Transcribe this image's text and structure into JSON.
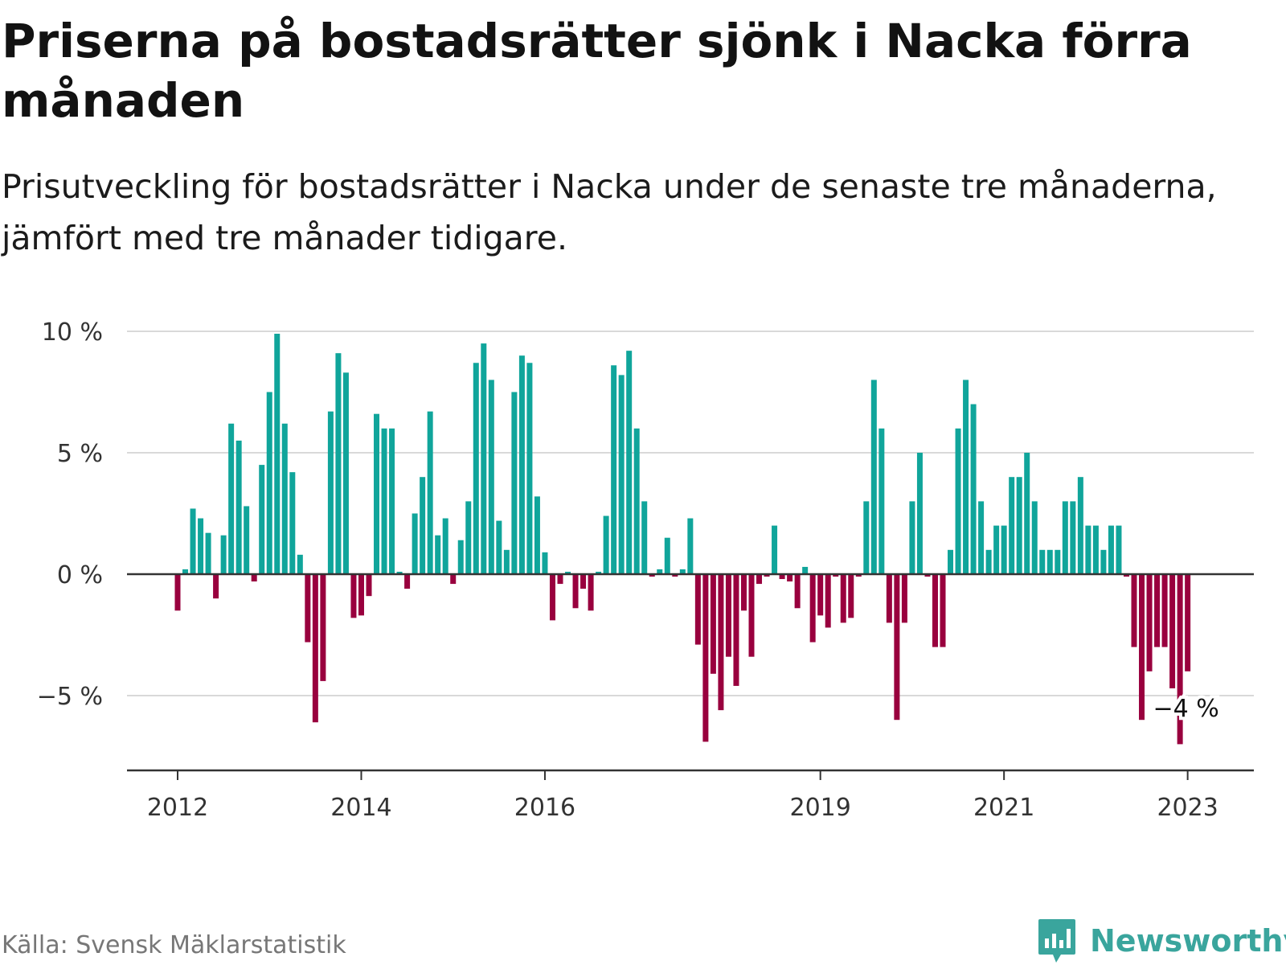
{
  "title": "Priserna på bostadsrätter sjönk i Nacka förra månaden",
  "subtitle": "Prisutveckling för bostadsrätter i Nacka under de senaste tre månaderna, jämfört med tre månader tidigare.",
  "source": "Källa: Svensk Mäklarstatistik",
  "brand": {
    "name": "Newsworthy",
    "icon": "newsworthy-logo-icon",
    "color": "#3aa59d"
  },
  "colors": {
    "positive": "#10a59b",
    "negative": "#99003e",
    "grid": "#d9d9d9",
    "axis": "#333333"
  },
  "chart_data": {
    "type": "bar",
    "title": "Priserna på bostadsrätter sjönk i Nacka förra månaden",
    "ylim": [
      -8,
      10.5
    ],
    "yticks": [
      10,
      5,
      0,
      -5
    ],
    "ytick_labels": [
      "10 %",
      "5 %",
      "0 %",
      "−5 %"
    ],
    "xtick_labels": [
      "2012",
      "2014",
      "2016",
      "2019",
      "2021",
      "2023"
    ],
    "annotation": "−4 %",
    "grid": true,
    "values": [
      -1.5,
      0.2,
      2.7,
      2.3,
      1.7,
      -1.0,
      1.6,
      6.2,
      5.5,
      2.8,
      -0.3,
      4.5,
      7.5,
      9.9,
      6.2,
      4.2,
      0.8,
      -2.8,
      -6.1,
      -4.4,
      6.7,
      9.1,
      8.3,
      -1.8,
      -1.7,
      -0.9,
      6.6,
      6.0,
      6.0,
      0.1,
      -0.6,
      2.5,
      4.0,
      6.7,
      1.6,
      2.3,
      -0.4,
      1.4,
      3.0,
      8.7,
      9.5,
      8.0,
      2.2,
      1.0,
      7.5,
      9.0,
      8.7,
      3.2,
      0.9,
      -1.9,
      -0.4,
      0.1,
      -1.4,
      -0.6,
      -1.5,
      0.1,
      2.4,
      8.6,
      8.2,
      9.2,
      6.0,
      3.0,
      -0.1,
      0.2,
      1.5,
      -0.1,
      0.2,
      2.3,
      -2.9,
      -6.9,
      -4.1,
      -5.6,
      -3.4,
      -4.6,
      -1.5,
      -3.4,
      -0.4,
      -0.1,
      2.0,
      -0.2,
      -0.3,
      -1.4,
      0.3,
      -2.8,
      -1.7,
      -2.2,
      -0.1,
      -2.0,
      -1.8,
      -0.1,
      3.0,
      8.0,
      6.0,
      -2.0,
      -6.0,
      -2.0,
      3.0,
      5.0,
      -0.1,
      -3.0,
      -3.0,
      1.0,
      6.0,
      8.0,
      7.0,
      3.0,
      1.0,
      2.0,
      2.0,
      4.0,
      4.0,
      5.0,
      3.0,
      1.0,
      1.0,
      1.0,
      3.0,
      3.0,
      4.0,
      2.0,
      2.0,
      1.0,
      2.0,
      2.0,
      -0.1,
      -3.0,
      -6.0,
      -4.0,
      -3.0,
      -3.0,
      -4.7,
      -7.0,
      -4.0
    ]
  }
}
